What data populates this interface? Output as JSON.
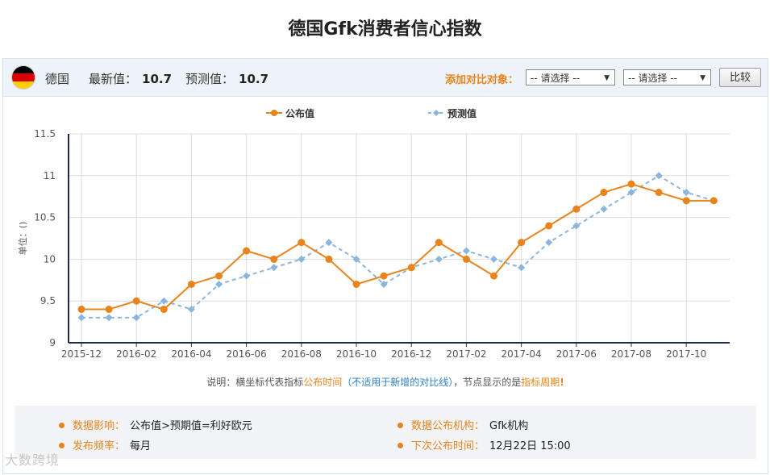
{
  "page_title": "德国Gfk消费者信心指数",
  "header": {
    "country": "德国",
    "latest_label": "最新值：",
    "latest_value": "10.7",
    "forecast_label": "预测值：",
    "forecast_value": "10.7",
    "compare_label": "添加对比对象：",
    "select1": "-- 请选择 --",
    "select2": "-- 请选择 --",
    "compare_button": "比较",
    "flag_colors": [
      "#000000",
      "#dd0000",
      "#ffce00"
    ]
  },
  "chart_data": {
    "type": "line",
    "title": "",
    "xlabel": "",
    "ylabel": "单位：()",
    "ylim": [
      9,
      11.5
    ],
    "yticks": [
      "11.5",
      "11",
      "10.5",
      "10",
      "9.5",
      "9"
    ],
    "xtick_labels": [
      "2015-12",
      "2016-02",
      "2016-04",
      "2016-06",
      "2016-08",
      "2016-10",
      "2016-12",
      "2017-02",
      "2017-04",
      "2017-06",
      "2017-08",
      "2017-10"
    ],
    "x": [
      "2015-12",
      "2016-01",
      "2016-02",
      "2016-03",
      "2016-04",
      "2016-05",
      "2016-06",
      "2016-07",
      "2016-08",
      "2016-09",
      "2016-10",
      "2016-11",
      "2016-12",
      "2017-01",
      "2017-02",
      "2017-03",
      "2017-04",
      "2017-05",
      "2017-06",
      "2017-07",
      "2017-08",
      "2017-09",
      "2017-10",
      "2017-11"
    ],
    "grid": true,
    "legend": "top-center",
    "series": [
      {
        "name": "公布值",
        "color": "#e8841b",
        "marker": "circle",
        "dash": false,
        "values": [
          9.4,
          9.4,
          9.5,
          9.4,
          9.7,
          9.8,
          10.1,
          10.0,
          10.2,
          10.0,
          9.7,
          9.8,
          9.9,
          10.2,
          10.0,
          9.8,
          10.2,
          10.4,
          10.6,
          10.8,
          10.9,
          10.8,
          10.7,
          10.7
        ]
      },
      {
        "name": "预测值",
        "color": "#8ab6de",
        "marker": "diamond",
        "dash": true,
        "values": [
          9.3,
          9.3,
          9.3,
          9.5,
          9.4,
          9.7,
          9.8,
          9.9,
          10.0,
          10.2,
          10.0,
          9.7,
          9.9,
          10.0,
          10.1,
          10.0,
          9.9,
          10.2,
          10.4,
          10.6,
          10.8,
          11.0,
          10.8,
          10.7
        ]
      }
    ]
  },
  "note": {
    "p1": "说明：横坐标代表指标",
    "p2": "公布时间",
    "p3": "（不适用于新增的对比线）",
    "p4": "，节点显示的是",
    "p5": "指标周期",
    "p6": "!"
  },
  "info": {
    "impact_label": "数据影响：",
    "impact_value": "公布值>预期值=利好欧元",
    "agency_label": "数据公布机构：",
    "agency_value": "Gfk机构",
    "freq_label": "发布频率：",
    "freq_value": "每月",
    "next_label": "下次公布时间：",
    "next_value": "12月22日 15:00"
  },
  "watermark": "大数跨境"
}
